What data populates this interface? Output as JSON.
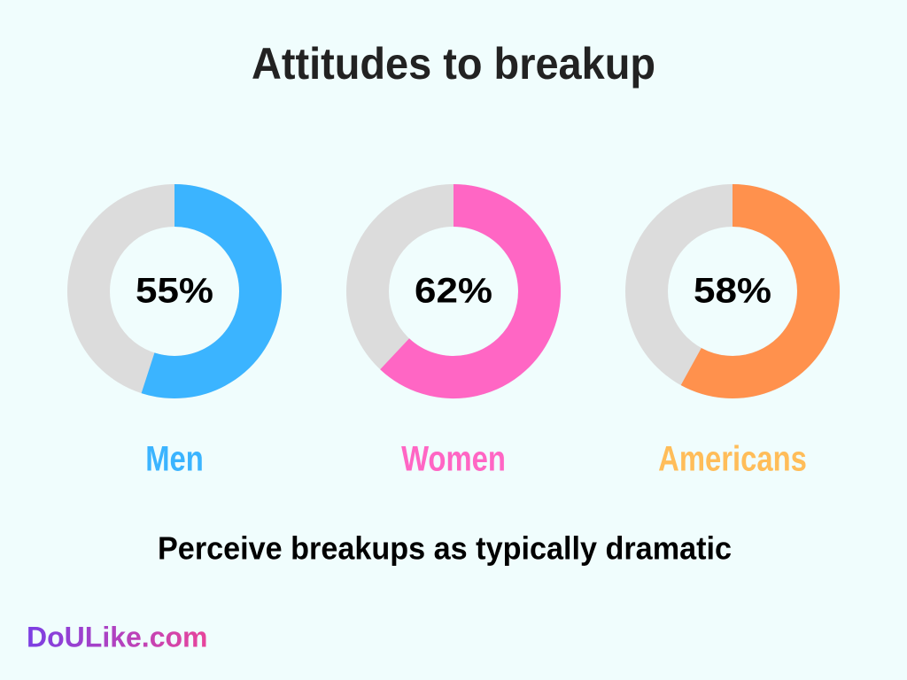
{
  "title": "Attitudes to breakup",
  "chart_data": [
    {
      "type": "donut",
      "name": "Men",
      "color": "#3bb4ff",
      "label_color": "#3bb4ff",
      "track_color": "#dcdcdc",
      "values": [
        55
      ],
      "value_labels": [
        "55%"
      ],
      "ylim": [
        0,
        100
      ]
    },
    {
      "type": "donut",
      "name": "Women",
      "color": "#ff66c4",
      "label_color": "#ff66c4",
      "track_color": "#dcdcdc",
      "values": [
        62
      ],
      "value_labels": [
        "62%"
      ],
      "ylim": [
        0,
        100
      ]
    },
    {
      "type": "donut",
      "name": "Americans",
      "color": "#ff914d",
      "label_color": "#ffbd59",
      "track_color": "#dcdcdc",
      "values": [
        58
      ],
      "value_labels": [
        "58%"
      ],
      "ylim": [
        0,
        100
      ]
    }
  ],
  "caption": "Perceive breakups as typically dramatic",
  "brand": "DoULike.com"
}
